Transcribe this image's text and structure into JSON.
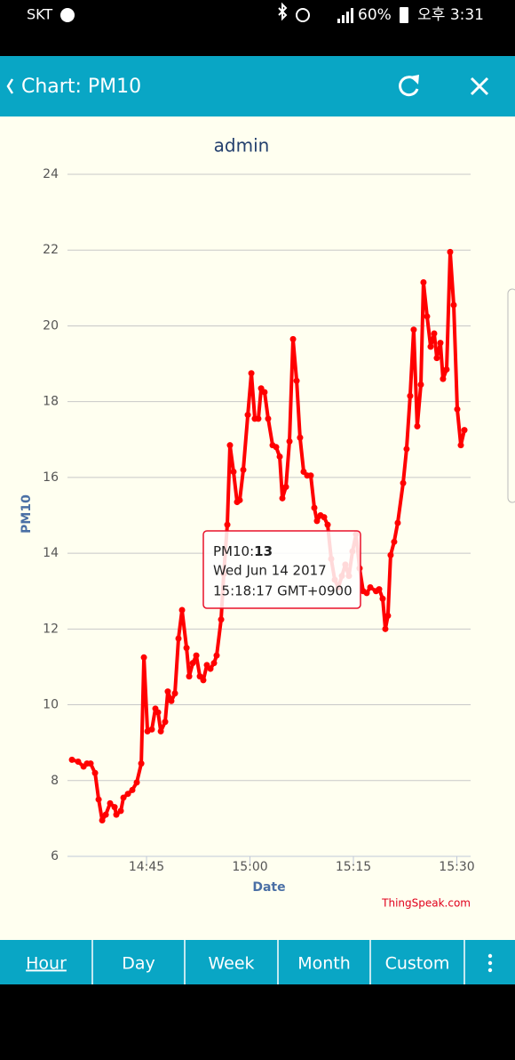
{
  "status_bar": {
    "carrier": "SKT",
    "battery": "60%",
    "time": "오후 3:31"
  },
  "app_bar": {
    "title": "Chart: PM10"
  },
  "chart_data": {
    "type": "line",
    "title": "admin",
    "x_label": "Date",
    "y_label": "PM10",
    "color": "#ff0000",
    "x": [
      "14:34:11",
      "14:35:05",
      "14:35:52",
      "14:36:22",
      "14:36:53",
      "14:37:32",
      "14:38:03",
      "14:38:34",
      "14:39:05",
      "14:39:43",
      "14:40:22",
      "14:40:37",
      "14:41:16",
      "14:41:39",
      "14:42:18",
      "14:42:56",
      "14:43:35",
      "14:44:14",
      "14:44:37",
      "14:45:08",
      "14:45:46",
      "14:46:17",
      "14:46:40",
      "14:47:04",
      "14:47:42",
      "14:48:05",
      "14:48:36",
      "14:49:07",
      "14:49:38",
      "14:50:09",
      "14:50:48",
      "14:51:11",
      "14:51:42",
      "14:52:13",
      "14:52:44",
      "14:53:14",
      "14:53:45",
      "14:54:16",
      "14:54:47",
      "14:55:10",
      "14:55:49",
      "14:56:12",
      "14:56:43",
      "14:57:06",
      "14:57:37",
      "14:58:08",
      "14:58:31",
      "14:59:02",
      "14:59:41",
      "15:00:12",
      "15:00:42",
      "15:01:13",
      "15:01:37",
      "15:02:07",
      "15:02:38",
      "15:03:17",
      "15:03:48",
      "15:04:19",
      "15:04:42",
      "15:05:13",
      "15:05:44",
      "15:06:15",
      "15:06:46",
      "15:07:16",
      "15:07:47",
      "15:08:18",
      "15:08:49",
      "15:09:20",
      "15:09:43",
      "15:10:14",
      "15:10:45",
      "15:11:16",
      "15:11:47",
      "15:12:18",
      "15:12:49",
      "15:13:20",
      "15:13:50",
      "15:14:21",
      "15:14:52",
      "15:15:23",
      "15:15:54",
      "15:16:25",
      "15:16:56",
      "15:17:27",
      "15:18:17",
      "15:18:44",
      "15:19:15",
      "15:19:38",
      "15:20:01",
      "15:20:24",
      "15:20:55",
      "15:21:26",
      "15:22:13",
      "15:22:43",
      "15:23:14",
      "15:23:45",
      "15:24:16",
      "15:24:47",
      "15:25:10",
      "15:25:41",
      "15:26:12",
      "15:26:43",
      "15:27:06",
      "15:27:37",
      "15:28:00",
      "15:28:31",
      "15:29:02",
      "15:29:33",
      "15:30:04",
      "15:30:35",
      "15:31:06"
    ],
    "values": [
      8.55,
      8.5,
      8.37,
      8.45,
      8.45,
      8.2,
      7.5,
      6.95,
      7.1,
      7.4,
      7.3,
      7.1,
      7.2,
      7.55,
      7.65,
      7.75,
      7.95,
      8.45,
      11.25,
      9.3,
      9.35,
      9.9,
      9.8,
      9.3,
      9.55,
      10.35,
      10.1,
      10.3,
      11.75,
      12.5,
      11.5,
      10.75,
      11.1,
      11.3,
      10.75,
      10.65,
      11.05,
      10.95,
      11.1,
      11.3,
      12.25,
      13.45,
      14.75,
      16.85,
      16.15,
      15.35,
      15.4,
      16.2,
      17.65,
      18.75,
      17.55,
      17.55,
      18.35,
      18.25,
      17.55,
      16.85,
      16.8,
      16.55,
      15.45,
      15.75,
      16.95,
      19.65,
      18.55,
      17.05,
      16.15,
      16.05,
      16.05,
      15.2,
      14.85,
      15.0,
      14.95,
      14.75,
      13.85,
      13.3,
      13.1,
      13.4,
      13.7,
      13.4,
      14.05,
      14.5,
      13.6,
      13.0,
      12.95,
      13.1,
      13,
      13.05,
      12.8,
      12.0,
      12.35,
      13.95,
      14.3,
      14.8,
      15.85,
      16.75,
      18.15,
      19.9,
      17.35,
      18.45,
      21.15,
      20.25,
      19.45,
      19.8,
      19.15,
      19.55,
      18.6,
      18.85,
      21.95,
      20.55,
      17.8,
      16.85,
      17.25
    ],
    "xlim": [
      "14:33:32",
      "15:32:00"
    ],
    "xticks": [
      "14:45",
      "15:00",
      "15:15",
      "15:30"
    ],
    "ylim": [
      6,
      24
    ],
    "yticks": [
      6,
      8,
      10,
      12,
      14,
      16,
      18,
      20,
      22,
      24
    ],
    "grid": true
  },
  "tooltip": {
    "series": "PM10:",
    "value": "13",
    "date": "Wed Jun 14 2017",
    "time": "15:18:17 GMT+0900"
  },
  "credit": "ThingSpeak.com",
  "tabs": [
    "Hour",
    "Day",
    "Week",
    "Month",
    "Custom"
  ]
}
